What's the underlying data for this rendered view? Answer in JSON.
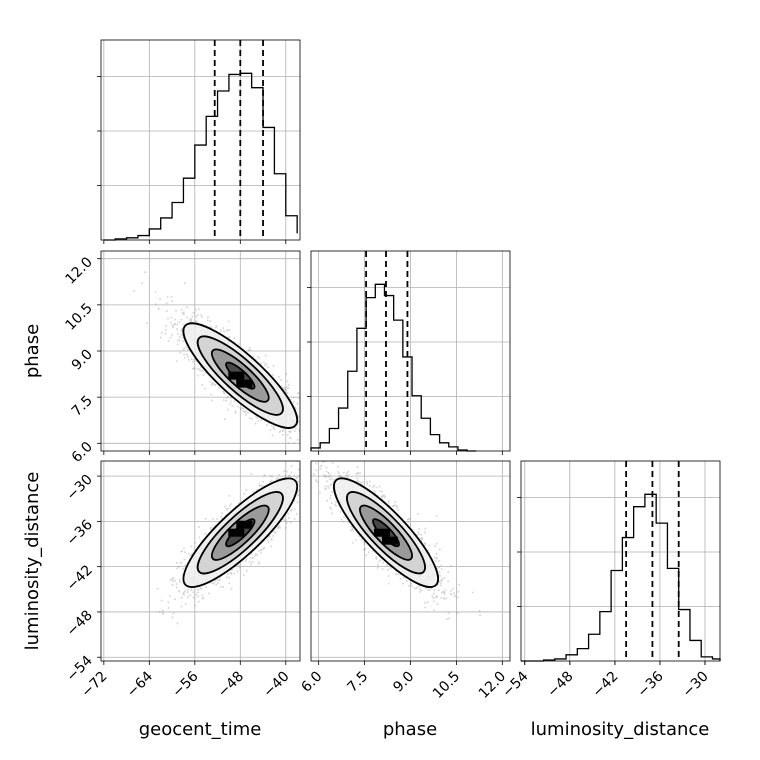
{
  "chart_data": {
    "type": "corner",
    "parameters": [
      "geocent_time",
      "phase",
      "luminosity_distance"
    ],
    "grid": true,
    "tick_labels": {
      "geocent_time": [
        "−72",
        "−64",
        "−56",
        "−48",
        "−40"
      ],
      "phase": [
        "6.0",
        "7.5",
        "9.0",
        "10.5",
        "12.0"
      ],
      "luminosity_distance": [
        "−54",
        "−48",
        "−42",
        "−36",
        "−30"
      ]
    },
    "ticks": {
      "geocent_time": [
        -72,
        -64,
        -56,
        -48,
        -40
      ],
      "phase": [
        6.0,
        7.5,
        9.0,
        10.5,
        12.0
      ],
      "luminosity_distance": [
        -54,
        -48,
        -42,
        -36,
        -30
      ]
    },
    "ranges": {
      "geocent_time": [
        -72.5,
        -37.5
      ],
      "phase": [
        5.75,
        12.25
      ],
      "luminosity_distance": [
        -54.5,
        -28.0
      ]
    },
    "marginals": [
      {
        "parameter": "geocent_time",
        "bin_edges": [
          -72,
          -70,
          -68,
          -66,
          -64,
          -62,
          -60,
          -58,
          -56,
          -54,
          -52,
          -50,
          -48,
          -46,
          -44,
          -42,
          -40,
          -38
        ],
        "counts": [
          0,
          1,
          2,
          4,
          10,
          20,
          34,
          56,
          86,
          112,
          135,
          150,
          151,
          138,
          102,
          60,
          22,
          6
        ],
        "quantiles": [
          -52.5,
          -48.0,
          -44.0
        ]
      },
      {
        "parameter": "phase",
        "bin_edges": [
          5.75,
          6.05,
          6.35,
          6.65,
          6.95,
          7.25,
          7.55,
          7.85,
          8.15,
          8.45,
          8.75,
          9.05,
          9.35,
          9.65,
          9.95,
          10.25,
          10.55,
          10.85,
          11.15
        ],
        "counts": [
          3,
          8,
          22,
          42,
          78,
          120,
          150,
          163,
          152,
          128,
          92,
          54,
          32,
          16,
          8,
          4,
          1,
          0
        ],
        "quantiles": [
          7.55,
          8.2,
          8.9
        ]
      },
      {
        "parameter": "luminosity_distance",
        "bin_edges": [
          -54.5,
          -53.0,
          -51.5,
          -50.0,
          -48.5,
          -47.0,
          -45.5,
          -44.0,
          -42.5,
          -41.0,
          -39.5,
          -38.0,
          -36.5,
          -35.0,
          -33.5,
          -32.0,
          -30.5,
          -29.0,
          -28.0
        ],
        "counts": [
          0,
          0,
          1,
          2,
          6,
          12,
          26,
          48,
          88,
          120,
          150,
          162,
          134,
          90,
          50,
          20,
          4,
          2
        ],
        "quantiles": [
          -40.5,
          -37.0,
          -33.5
        ]
      }
    ],
    "joint": [
      {
        "x": "geocent_time",
        "y": "phase",
        "mean": [
          -48.0,
          8.2
        ],
        "std": [
          5.0,
          0.85
        ],
        "corr": -0.85
      },
      {
        "x": "geocent_time",
        "y": "luminosity_distance",
        "mean": [
          -48.0,
          -37.5
        ],
        "std": [
          5.0,
          3.6
        ],
        "corr": 0.85
      },
      {
        "x": "phase",
        "y": "luminosity_distance",
        "mean": [
          8.2,
          -37.5
        ],
        "std": [
          0.85,
          3.6
        ],
        "corr": -0.85
      }
    ],
    "contour_levels_sigma": [
      0.5,
      1.0,
      1.5,
      2.0
    ],
    "colors": {
      "line": "#000000",
      "grid": "#b0b0b0",
      "scatter": "#808080"
    }
  }
}
